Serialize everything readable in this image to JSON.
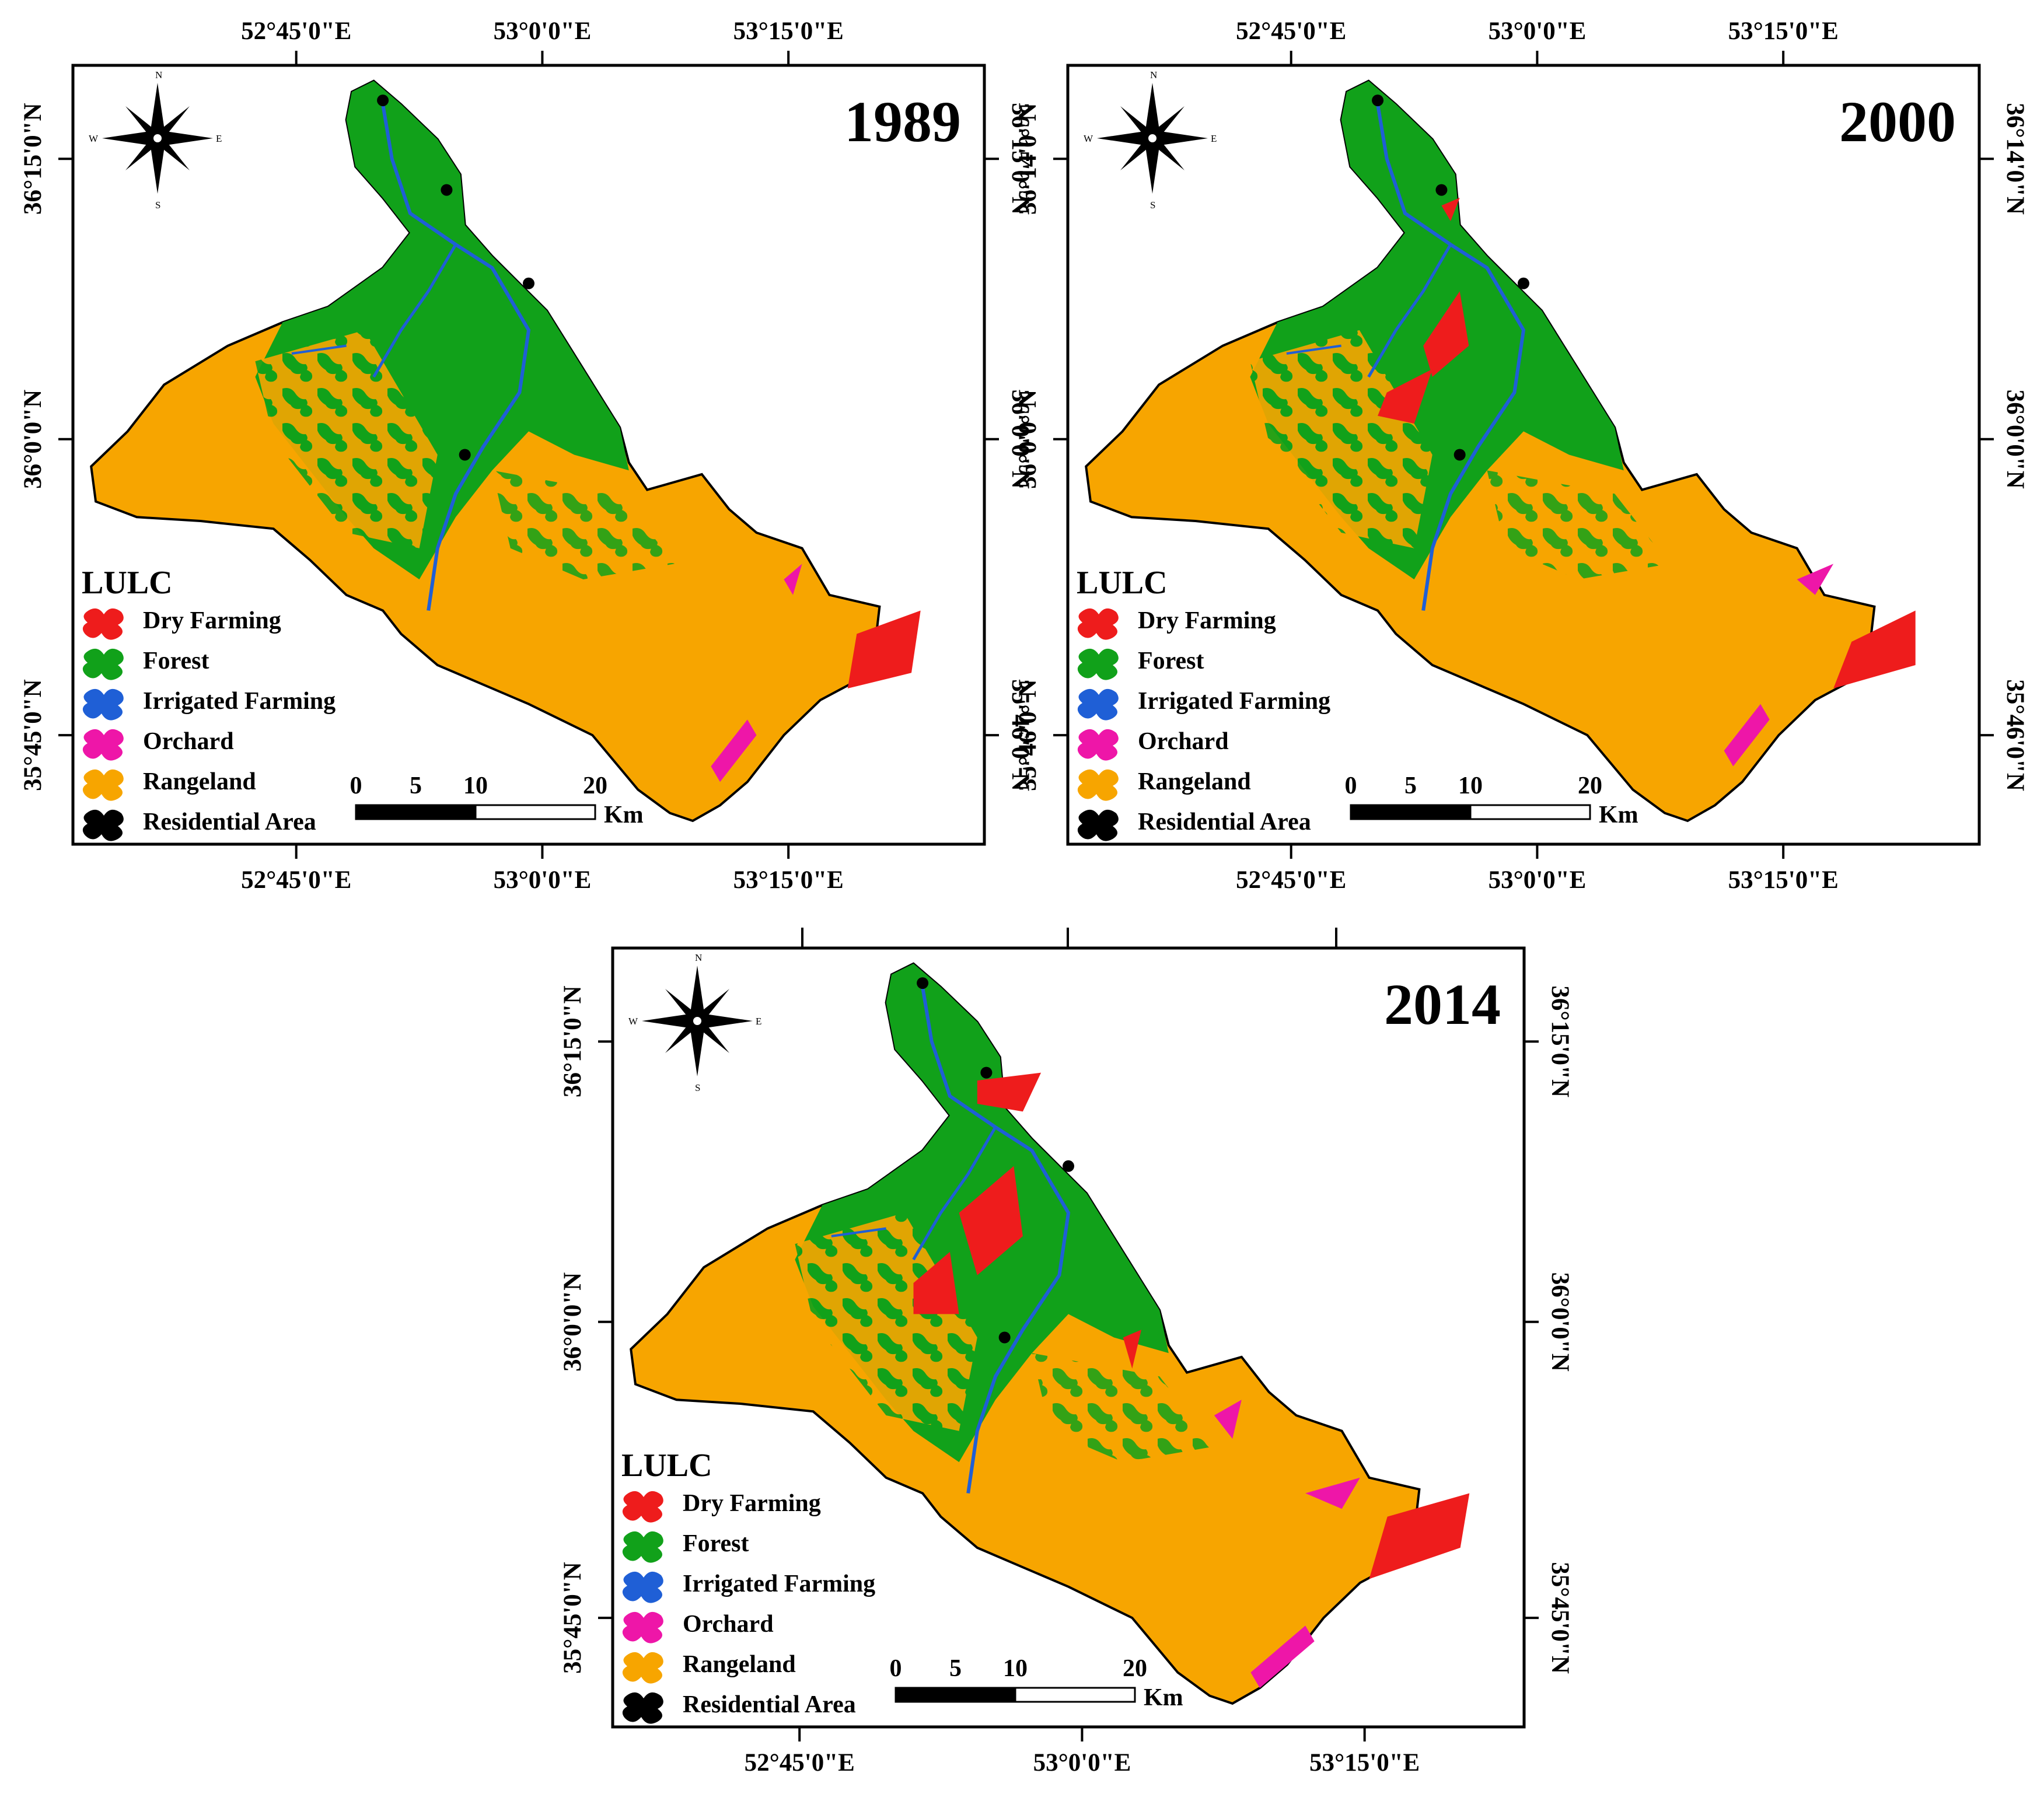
{
  "figure": {
    "panels": [
      {
        "year": "1989",
        "top_labels": [
          "52°45'0\"E",
          "53°0'0\"E",
          "53°15'0\"E"
        ],
        "bottom_labels": [
          "52°45'0\"E",
          "53°0'0\"E",
          "53°15'0\"E"
        ],
        "left_labels": [
          "36°15'0\"N",
          "36°0'0\"N",
          "35°45'0\"N"
        ],
        "right_labels": [
          "36°15'0\"N",
          "36°0'0\"N",
          "35°46'0\"N"
        ]
      },
      {
        "year": "2000",
        "top_labels": [
          "52°45'0\"E",
          "53°0'0\"E",
          "53°15'0\"E"
        ],
        "bottom_labels": [
          "52°45'0\"E",
          "53°0'0\"E",
          "53°15'0\"E"
        ],
        "left_labels": [
          "36°14'0\"N",
          "36°0'0\"N",
          "35°46'0\"N"
        ],
        "right_labels": [
          "36°14'0\"N",
          "36°0'0\"N",
          "35°46'0\"N"
        ]
      },
      {
        "year": "2014",
        "top_labels": [],
        "bottom_labels": [
          "52°45'0\"E",
          "53°0'0\"E",
          "53°15'0\"E"
        ],
        "left_labels": [
          "36°15'0\"N",
          "36°0'0\"N",
          "35°45'0\"N"
        ],
        "right_labels": [
          "36°15'0\"N",
          "36°0'0\"N",
          "35°45'0\"N"
        ]
      }
    ],
    "legend": {
      "title": "LULC",
      "items": [
        {
          "label": "Dry Farming",
          "color": "#ee1c1c"
        },
        {
          "label": "Forest",
          "color": "#11a11a"
        },
        {
          "label": "Irrigated Farming",
          "color": "#1f5fd6"
        },
        {
          "label": "Orchard",
          "color": "#ee16a8"
        },
        {
          "label": "Rangeland",
          "color": "#f7a500"
        },
        {
          "label": "Residential Area",
          "color": "#000000"
        }
      ]
    },
    "scale_bar": {
      "ticks": [
        "0",
        "5",
        "10",
        "20"
      ],
      "unit": "Km"
    },
    "compass": {
      "n": "N",
      "s": "S",
      "e": "E",
      "w": "W"
    }
  }
}
